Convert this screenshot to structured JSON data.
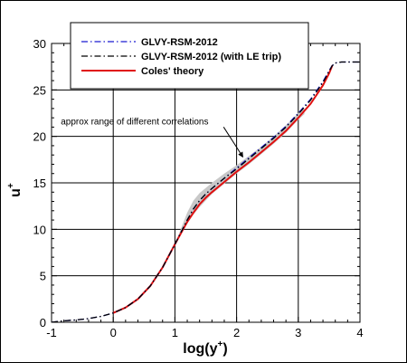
{
  "chart_data": {
    "type": "line",
    "xlabel": "log(y",
    "xlabel_sup": "+",
    "xlabel_close": ")",
    "ylabel": "u",
    "ylabel_sup": "+",
    "xlim": [
      -1,
      4
    ],
    "ylim": [
      0,
      30
    ],
    "xticks": [
      -1,
      0,
      1,
      2,
      3,
      4
    ],
    "yticks": [
      0,
      5,
      10,
      15,
      20,
      25,
      30
    ],
    "grid": true,
    "legend_position": "top-left",
    "series": [
      {
        "name": "GLVY-RSM-2012",
        "color": "#1a1ad0",
        "dash": "dash-dot",
        "x": [
          -1.0,
          -0.8,
          -0.6,
          -0.4,
          -0.2,
          0.0,
          0.2,
          0.4,
          0.6,
          0.8,
          1.0,
          1.1,
          1.2,
          1.3,
          1.4,
          1.5,
          1.6,
          1.8,
          2.0,
          2.2,
          2.4,
          2.6,
          2.8,
          3.0,
          3.2,
          3.4,
          3.5,
          3.55,
          3.6,
          3.7,
          3.8,
          4.0
        ],
        "values": [
          0.0,
          0.16,
          0.25,
          0.4,
          0.63,
          1.0,
          1.58,
          2.5,
          3.9,
          5.9,
          8.4,
          9.7,
          11.0,
          12.2,
          13.1,
          13.8,
          14.4,
          15.5,
          16.6,
          17.7,
          18.8,
          19.9,
          21.1,
          22.5,
          24.0,
          25.9,
          27.1,
          27.6,
          27.9,
          28.0,
          28.0,
          28.0
        ]
      },
      {
        "name": "GLVY-RSM-2012 (with LE trip)",
        "color": "#000000",
        "dash": "dash-dot",
        "x": [
          -1.0,
          -0.8,
          -0.6,
          -0.4,
          -0.2,
          0.0,
          0.2,
          0.4,
          0.6,
          0.8,
          1.0,
          1.1,
          1.2,
          1.3,
          1.4,
          1.5,
          1.6,
          1.8,
          2.0,
          2.2,
          2.4,
          2.6,
          2.8,
          3.0,
          3.2,
          3.4,
          3.5,
          3.55,
          3.6,
          3.7,
          3.8,
          4.0
        ],
        "values": [
          0.0,
          0.16,
          0.25,
          0.4,
          0.63,
          1.0,
          1.58,
          2.5,
          3.9,
          5.9,
          8.4,
          9.7,
          11.0,
          12.2,
          13.1,
          13.8,
          14.4,
          15.5,
          16.5,
          17.6,
          18.7,
          19.8,
          21.0,
          22.4,
          23.9,
          25.8,
          27.0,
          27.6,
          27.9,
          28.0,
          28.0,
          28.0
        ]
      },
      {
        "name": "Coles' theory",
        "color": "#e01010",
        "dash": "solid",
        "x": [
          0.0,
          0.2,
          0.4,
          0.6,
          0.8,
          1.0,
          1.1,
          1.2,
          1.3,
          1.4,
          1.5,
          1.6,
          1.8,
          2.0,
          2.2,
          2.4,
          2.6,
          2.8,
          3.0,
          3.2,
          3.4,
          3.5,
          3.55
        ],
        "values": [
          1.0,
          1.58,
          2.5,
          3.9,
          5.9,
          8.4,
          9.6,
          10.8,
          11.8,
          12.7,
          13.4,
          14.0,
          15.1,
          16.2,
          17.2,
          18.3,
          19.4,
          20.6,
          22.0,
          23.5,
          25.5,
          26.8,
          27.6
        ]
      }
    ],
    "band": {
      "color": "#c8c8c8",
      "x": [
        1.0,
        1.1,
        1.2,
        1.3,
        1.4,
        1.6,
        1.8,
        2.0,
        2.2,
        2.4,
        2.6,
        2.8,
        3.0,
        3.1
      ],
      "lower": [
        8.4,
        9.5,
        10.6,
        11.6,
        12.4,
        13.8,
        14.9,
        16.0,
        17.0,
        18.1,
        19.2,
        20.4,
        21.8,
        22.4
      ],
      "upper": [
        8.4,
        10.1,
        11.8,
        13.1,
        13.9,
        15.0,
        16.0,
        16.9,
        17.9,
        18.9,
        20.0,
        21.2,
        22.5,
        23.0
      ]
    },
    "annotation": {
      "text": "approx range of different correlations",
      "x": -0.85,
      "y": 21.3,
      "arrow_to": [
        2.1,
        17.8
      ]
    }
  }
}
